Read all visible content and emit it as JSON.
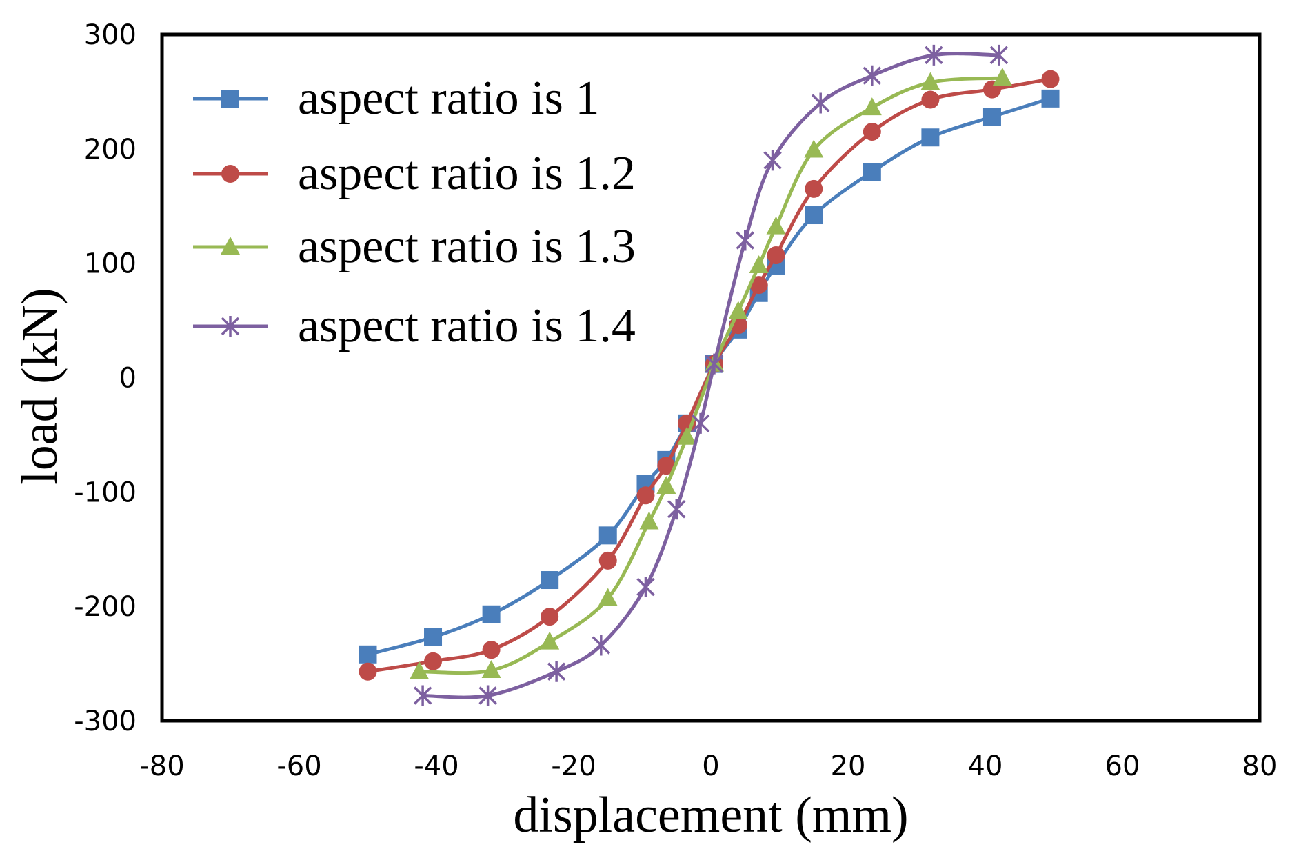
{
  "chart_data": {
    "type": "line",
    "title": "",
    "xlabel": "displacement (mm)",
    "ylabel": "load (kN)",
    "xlim": [
      -80,
      80
    ],
    "ylim": [
      -300,
      300
    ],
    "xticks": [
      -80,
      -60,
      -40,
      -20,
      0,
      20,
      40,
      60,
      80
    ],
    "yticks": [
      300,
      200,
      100,
      0,
      -100,
      -200,
      -300
    ],
    "xtick_labels": [
      "-80",
      "-60",
      "-40",
      "-20",
      "0",
      "20",
      "40",
      "60",
      "80"
    ],
    "ytick_labels": [
      "300",
      "200",
      "100",
      "0",
      "-100",
      "-200",
      "-300"
    ],
    "grid": false,
    "legend_position": "top-left",
    "series": [
      {
        "name": "aspect ratio is 1",
        "color": "#4a7ebb",
        "marker": "square",
        "points": [
          [
            -50,
            -242
          ],
          [
            -40.5,
            -227
          ],
          [
            -32,
            -207
          ],
          [
            -23.5,
            -177
          ],
          [
            -15,
            -138
          ],
          [
            -9.5,
            -93
          ],
          [
            -6.5,
            -72
          ],
          [
            -3.5,
            -40
          ],
          [
            0.5,
            12
          ],
          [
            4,
            42
          ],
          [
            7,
            74
          ],
          [
            9.5,
            98
          ],
          [
            15,
            142
          ],
          [
            23.5,
            180
          ],
          [
            32,
            210
          ],
          [
            41,
            228
          ],
          [
            49.5,
            244
          ]
        ]
      },
      {
        "name": "aspect ratio is 1.2",
        "color": "#be4b48",
        "marker": "circle",
        "points": [
          [
            -50,
            -257
          ],
          [
            -40.5,
            -248
          ],
          [
            -32,
            -238
          ],
          [
            -23.5,
            -209
          ],
          [
            -15,
            -160
          ],
          [
            -9.5,
            -103
          ],
          [
            -6.5,
            -77
          ],
          [
            -3.5,
            -40
          ],
          [
            0.5,
            12
          ],
          [
            4,
            46
          ],
          [
            7,
            81
          ],
          [
            9.5,
            107
          ],
          [
            15,
            165
          ],
          [
            23.5,
            215
          ],
          [
            32,
            243
          ],
          [
            41,
            252
          ],
          [
            49.5,
            261
          ]
        ]
      },
      {
        "name": "aspect ratio is 1.3",
        "color": "#98b954",
        "marker": "triangle",
        "points": [
          [
            -42.5,
            -257
          ],
          [
            -32,
            -256
          ],
          [
            -23.5,
            -231
          ],
          [
            -15,
            -193
          ],
          [
            -9,
            -126
          ],
          [
            -6.5,
            -95
          ],
          [
            -3.5,
            -52
          ],
          [
            0.5,
            12
          ],
          [
            4,
            58
          ],
          [
            7,
            98
          ],
          [
            9.5,
            132
          ],
          [
            15,
            199
          ],
          [
            23.5,
            236
          ],
          [
            32,
            258
          ],
          [
            42.5,
            262
          ]
        ]
      },
      {
        "name": "aspect ratio is 1.4",
        "color": "#7d60a0",
        "marker": "star",
        "points": [
          [
            -42,
            -278
          ],
          [
            -32.5,
            -278
          ],
          [
            -22.5,
            -257
          ],
          [
            -16,
            -234
          ],
          [
            -9.5,
            -183
          ],
          [
            -5,
            -115
          ],
          [
            -1.5,
            -40
          ],
          [
            0.5,
            12
          ],
          [
            5,
            120
          ],
          [
            9,
            190
          ],
          [
            16,
            240
          ],
          [
            23.5,
            264
          ],
          [
            32.5,
            282
          ],
          [
            42,
            282
          ]
        ]
      }
    ]
  }
}
